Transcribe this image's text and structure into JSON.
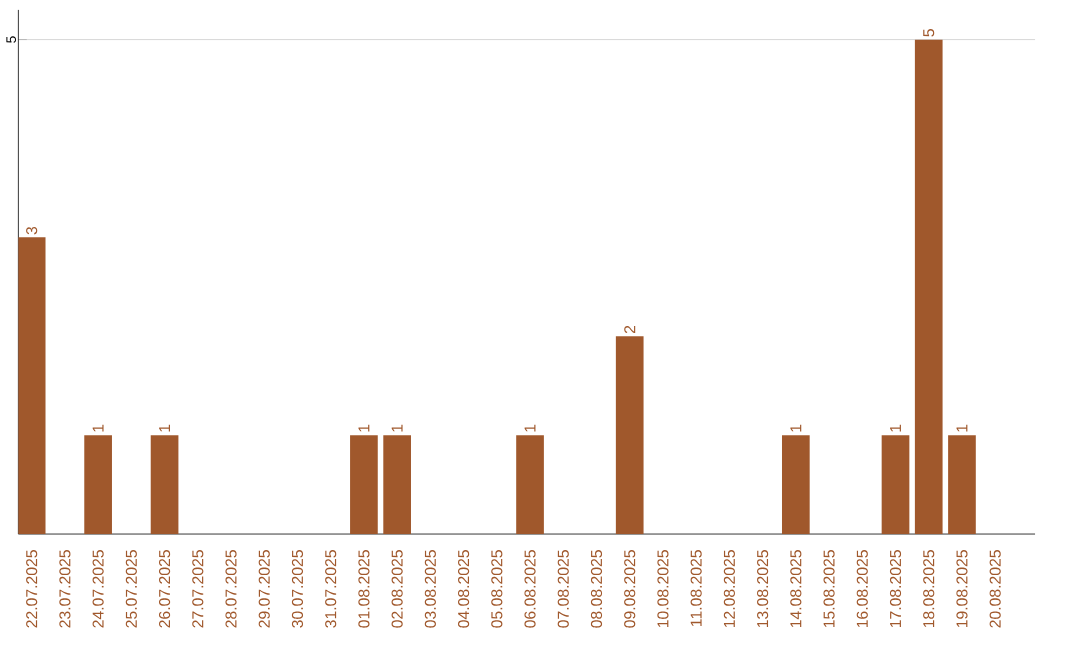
{
  "chart_data": {
    "type": "bar",
    "categories": [
      "22.07.2025",
      "23.07.2025",
      "24.07.2025",
      "25.07.2025",
      "26.07.2025",
      "27.07.2025",
      "28.07.2025",
      "29.07.2025",
      "30.07.2025",
      "31.07.2025",
      "01.08.2025",
      "02.08.2025",
      "03.08.2025",
      "04.08.2025",
      "05.08.2025",
      "06.08.2025",
      "07.08.2025",
      "08.08.2025",
      "09.08.2025",
      "10.08.2025",
      "11.08.2025",
      "12.08.2025",
      "13.08.2025",
      "14.08.2025",
      "15.08.2025",
      "16.08.2025",
      "17.08.2025",
      "18.08.2025",
      "19.08.2025",
      "20.08.2025"
    ],
    "values": [
      3,
      0,
      1,
      0,
      1,
      0,
      0,
      0,
      0,
      0,
      1,
      1,
      0,
      0,
      0,
      1,
      0,
      0,
      2,
      0,
      0,
      0,
      0,
      1,
      0,
      0,
      1,
      5,
      1,
      0
    ],
    "value_labels": [
      "3",
      null,
      "1",
      null,
      "1",
      null,
      null,
      null,
      null,
      null,
      "1",
      "1",
      null,
      null,
      null,
      "1",
      null,
      null,
      "2",
      null,
      null,
      null,
      null,
      "1",
      null,
      null,
      "1",
      "5",
      "1",
      null
    ],
    "color": "#a0582c",
    "ylim": [
      0,
      5.3
    ],
    "yticks": [
      5
    ],
    "grid": "y"
  }
}
